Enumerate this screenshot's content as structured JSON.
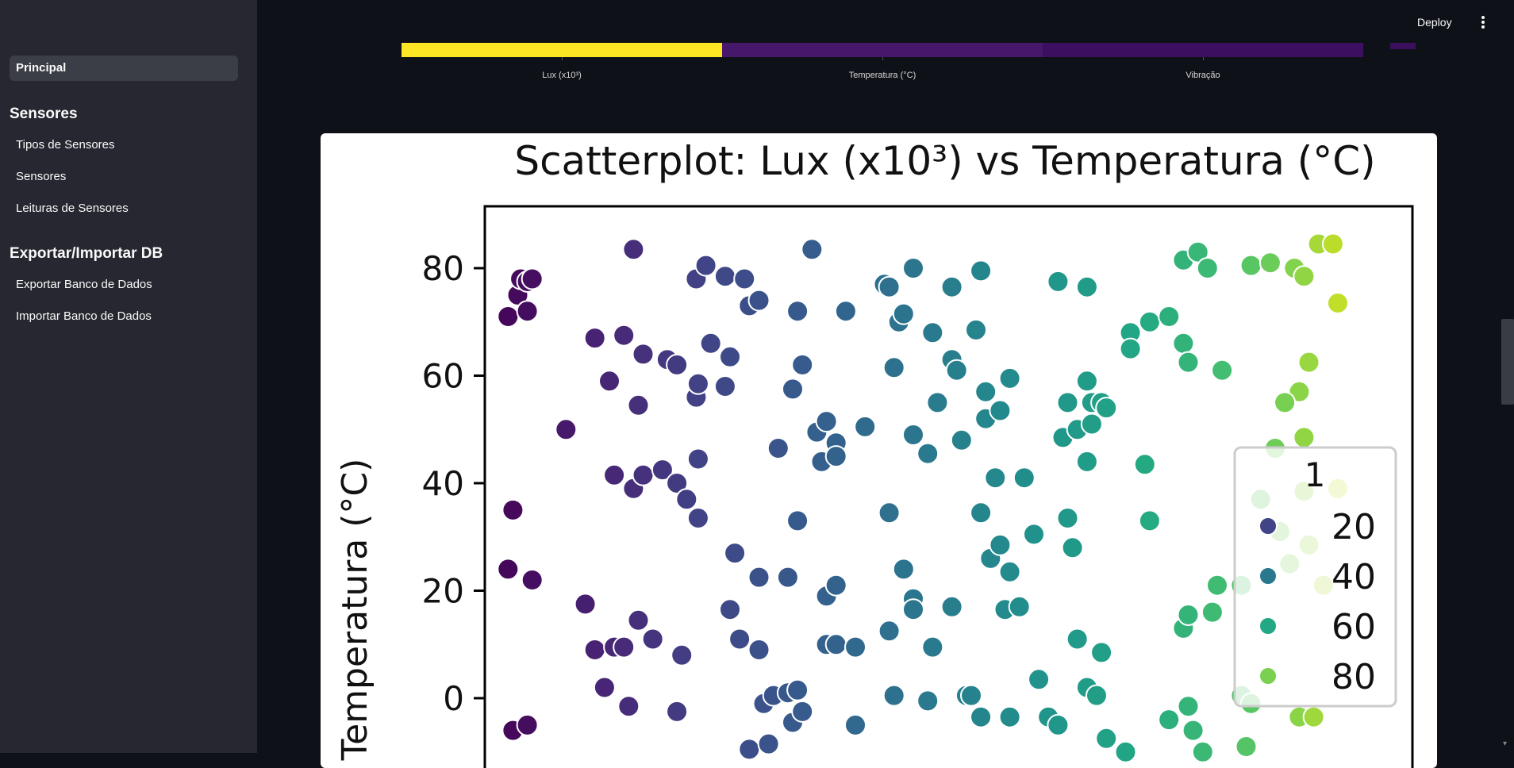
{
  "sidebar": {
    "active_item": "Principal",
    "sections": [
      {
        "title": "Sensores",
        "items": [
          "Tipos de Sensores",
          "Sensores",
          "Leituras de Sensores"
        ]
      },
      {
        "title": "Exportar/Importar DB",
        "items": [
          "Exportar Banco de Dados",
          "Importar Banco de Dados"
        ]
      }
    ]
  },
  "header": {
    "deploy_label": "Deploy",
    "menu_icon": "kebab-menu-icon"
  },
  "heatmap_strip": {
    "columns": [
      "Lux (x10³)",
      "Temperatura (°C)",
      "Vibração"
    ],
    "colors": [
      "#fde725",
      "#46176a",
      "#3c0f60"
    ],
    "colorbar_color": "#3b0f5e"
  },
  "chart_data": {
    "type": "scatter",
    "title": "Scatterplot: Lux (x10³) vs Temperatura (°C)",
    "ylabel": "Temperatura (°C)",
    "xlabel": "",
    "ylim": [
      -14,
      91
    ],
    "xlim": [
      0,
      100
    ],
    "yticks": [
      0,
      20,
      40,
      60,
      80
    ],
    "yticklabels": [
      "0",
      "20",
      "40",
      "60",
      "80"
    ],
    "legend": {
      "title": "1",
      "entries": [
        "20",
        "40",
        "60",
        "80"
      ],
      "colors": [
        "#414487",
        "#2a788e",
        "#22a884",
        "#7ad151"
      ],
      "placement": "right"
    },
    "colormap": "viridis",
    "points": [
      [
        2,
        71
      ],
      [
        3,
        75
      ],
      [
        3.3,
        78
      ],
      [
        4,
        72
      ],
      [
        4,
        77.5
      ],
      [
        4.5,
        78
      ],
      [
        2.5,
        35
      ],
      [
        2,
        24
      ],
      [
        4.5,
        22
      ],
      [
        2.5,
        -6
      ],
      [
        4,
        -5
      ],
      [
        8,
        50
      ],
      [
        11,
        67
      ],
      [
        12.5,
        59
      ],
      [
        14,
        67.5
      ],
      [
        15.5,
        54.5
      ],
      [
        16,
        64
      ],
      [
        18.5,
        63
      ],
      [
        19.5,
        62
      ],
      [
        21.5,
        56
      ],
      [
        21.7,
        58.5
      ],
      [
        23,
        66
      ],
      [
        24.5,
        58
      ],
      [
        25,
        63.5
      ],
      [
        13,
        41.5
      ],
      [
        15,
        39
      ],
      [
        16,
        41.5
      ],
      [
        18,
        42.5
      ],
      [
        19.5,
        40
      ],
      [
        20.5,
        37
      ],
      [
        21.7,
        44.5
      ],
      [
        21.7,
        33.5
      ],
      [
        10,
        17.5
      ],
      [
        11,
        9
      ],
      [
        13,
        9.5
      ],
      [
        14,
        9.5
      ],
      [
        15.5,
        14.5
      ],
      [
        17,
        11
      ],
      [
        20,
        8
      ],
      [
        12,
        2
      ],
      [
        14.5,
        -1.5
      ],
      [
        19.5,
        -2.5
      ],
      [
        15,
        83.5
      ],
      [
        21.5,
        78
      ],
      [
        22.5,
        80.5
      ],
      [
        24.5,
        78.5
      ],
      [
        26.5,
        78
      ],
      [
        27,
        73
      ],
      [
        28,
        74
      ],
      [
        32,
        72
      ],
      [
        33.5,
        83.5
      ],
      [
        30,
        46.5
      ],
      [
        31.5,
        57.5
      ],
      [
        32.5,
        62
      ],
      [
        34,
        49.5
      ],
      [
        34.5,
        44
      ],
      [
        35,
        51.5
      ],
      [
        36,
        47.5
      ],
      [
        36,
        45
      ],
      [
        25.5,
        27
      ],
      [
        28,
        22.5
      ],
      [
        32,
        33
      ],
      [
        31,
        22.5
      ],
      [
        35,
        19
      ],
      [
        36,
        21
      ],
      [
        25,
        16.5
      ],
      [
        26,
        11
      ],
      [
        28,
        9
      ],
      [
        35,
        10
      ],
      [
        36,
        10
      ],
      [
        38,
        9.5
      ],
      [
        28.5,
        -1
      ],
      [
        29.5,
        0.5
      ],
      [
        31,
        1
      ],
      [
        32,
        1.5
      ],
      [
        31.5,
        -4.5
      ],
      [
        32.5,
        -2.5
      ],
      [
        27,
        -9.5
      ],
      [
        29,
        -8.5
      ],
      [
        37,
        72
      ],
      [
        41,
        77
      ],
      [
        41.5,
        76.5
      ],
      [
        42.5,
        70
      ],
      [
        43,
        71.5
      ],
      [
        44,
        80
      ],
      [
        46,
        68
      ],
      [
        48,
        76.5
      ],
      [
        51,
        79.5
      ],
      [
        50.5,
        68.5
      ],
      [
        39,
        50.5
      ],
      [
        42,
        61.5
      ],
      [
        44,
        49
      ],
      [
        45.5,
        45.5
      ],
      [
        46.5,
        55
      ],
      [
        48,
        63
      ],
      [
        48.5,
        61
      ],
      [
        49,
        48
      ],
      [
        51.5,
        52
      ],
      [
        51.5,
        57
      ],
      [
        53,
        53.5
      ],
      [
        54,
        59.5
      ],
      [
        41.5,
        34.5
      ],
      [
        43,
        24
      ],
      [
        44,
        18.5
      ],
      [
        44,
        16.5
      ],
      [
        41.5,
        12.5
      ],
      [
        46,
        9.5
      ],
      [
        48,
        17
      ],
      [
        51,
        34.5
      ],
      [
        52,
        26
      ],
      [
        52.5,
        41
      ],
      [
        53,
        28.5
      ],
      [
        53.5,
        16.5
      ],
      [
        54,
        23.5
      ],
      [
        55,
        17
      ],
      [
        55.5,
        41
      ],
      [
        56.5,
        30.5
      ],
      [
        38,
        -5
      ],
      [
        42,
        0.5
      ],
      [
        45.5,
        -0.5
      ],
      [
        49.5,
        0.5
      ],
      [
        50,
        0.5
      ],
      [
        51,
        -3.5
      ],
      [
        54,
        -3.5
      ],
      [
        59,
        77.5
      ],
      [
        62,
        76.5
      ],
      [
        59.5,
        48.5
      ],
      [
        60,
        55
      ],
      [
        61,
        50
      ],
      [
        62,
        59
      ],
      [
        62.5,
        51
      ],
      [
        62.5,
        55
      ],
      [
        63.5,
        55
      ],
      [
        64,
        54
      ],
      [
        62,
        44
      ],
      [
        60,
        33.5
      ],
      [
        60.5,
        28
      ],
      [
        61,
        11
      ],
      [
        62,
        2
      ],
      [
        63,
        0.5
      ],
      [
        63.5,
        8.5
      ],
      [
        58,
        -3.5
      ],
      [
        59,
        -5
      ],
      [
        64,
        -7.5
      ],
      [
        66,
        -10
      ],
      [
        57,
        3.5
      ],
      [
        66.5,
        68
      ],
      [
        66.5,
        65
      ],
      [
        68,
        43.5
      ],
      [
        68.5,
        33
      ],
      [
        68.5,
        70
      ],
      [
        70.5,
        71
      ],
      [
        72,
        66
      ],
      [
        72.5,
        62.5
      ],
      [
        72,
        81.5
      ],
      [
        73.5,
        83
      ],
      [
        74.5,
        80
      ],
      [
        76,
        61
      ],
      [
        70.5,
        -4
      ],
      [
        72.5,
        -1.5
      ],
      [
        73,
        -6
      ],
      [
        72,
        13
      ],
      [
        72.5,
        15.5
      ],
      [
        75,
        16
      ],
      [
        74,
        -10
      ],
      [
        75.5,
        21
      ],
      [
        79,
        80.5
      ],
      [
        81,
        81
      ],
      [
        83.5,
        80
      ],
      [
        84.5,
        78.5
      ],
      [
        86,
        84.5
      ],
      [
        87.5,
        84.5
      ],
      [
        88,
        73.5
      ],
      [
        85,
        62.5
      ],
      [
        84,
        57
      ],
      [
        82.5,
        55
      ],
      [
        84.5,
        48.5
      ],
      [
        81.5,
        46.5
      ],
      [
        84.5,
        38.5
      ],
      [
        80,
        37
      ],
      [
        82,
        31
      ],
      [
        83,
        25
      ],
      [
        85,
        28.5
      ],
      [
        86.5,
        21
      ],
      [
        88,
        39
      ],
      [
        84,
        -3.5
      ],
      [
        85.5,
        -3.5
      ],
      [
        78,
        21
      ],
      [
        78,
        0.5
      ],
      [
        79,
        -1
      ],
      [
        78.5,
        -9
      ]
    ]
  }
}
